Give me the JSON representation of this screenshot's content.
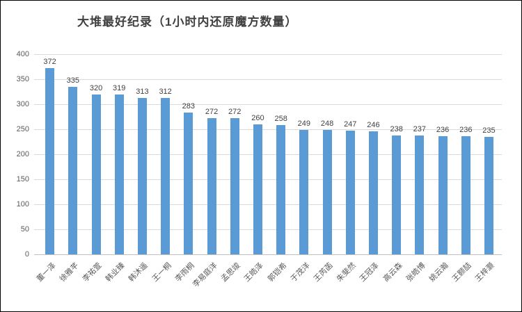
{
  "chart_data": {
    "type": "bar",
    "title": "大堆最好纪录（1小时内还原魔方数量）",
    "categories": [
      "董一泽",
      "徐雅芊",
      "李祐萱",
      "韩业臻",
      "韩沐遥",
      "王一桐",
      "李雨桐",
      "李易庭洋",
      "孟思竣",
      "王皓泽",
      "郭铠希",
      "于茂洋",
      "王芮菡",
      "朱斐然",
      "王冠泽",
      "高云森",
      "张皓博",
      "姚云瀚",
      "王颢喆",
      "王梓灏"
    ],
    "values": [
      372,
      335,
      320,
      319,
      313,
      312,
      283,
      272,
      272,
      260,
      258,
      249,
      248,
      247,
      246,
      238,
      237,
      236,
      236,
      235
    ],
    "xlabel": "",
    "ylabel": "",
    "ylim": [
      0,
      400
    ],
    "yticks": [
      0,
      50,
      100,
      150,
      200,
      250,
      300,
      350,
      400
    ],
    "grid": "horizontal",
    "legend": "none",
    "data_labels": "above-bars",
    "category_label_rotation_deg": -45,
    "colors": {
      "bar": "#5b9bd5",
      "gridline": "#d9d9d9",
      "axis_line": "#bfbfbf",
      "tick_text": "#595959",
      "value_label_text": "#404040",
      "title_text": "#404040",
      "background": "#ffffff",
      "border": "#000000"
    }
  }
}
